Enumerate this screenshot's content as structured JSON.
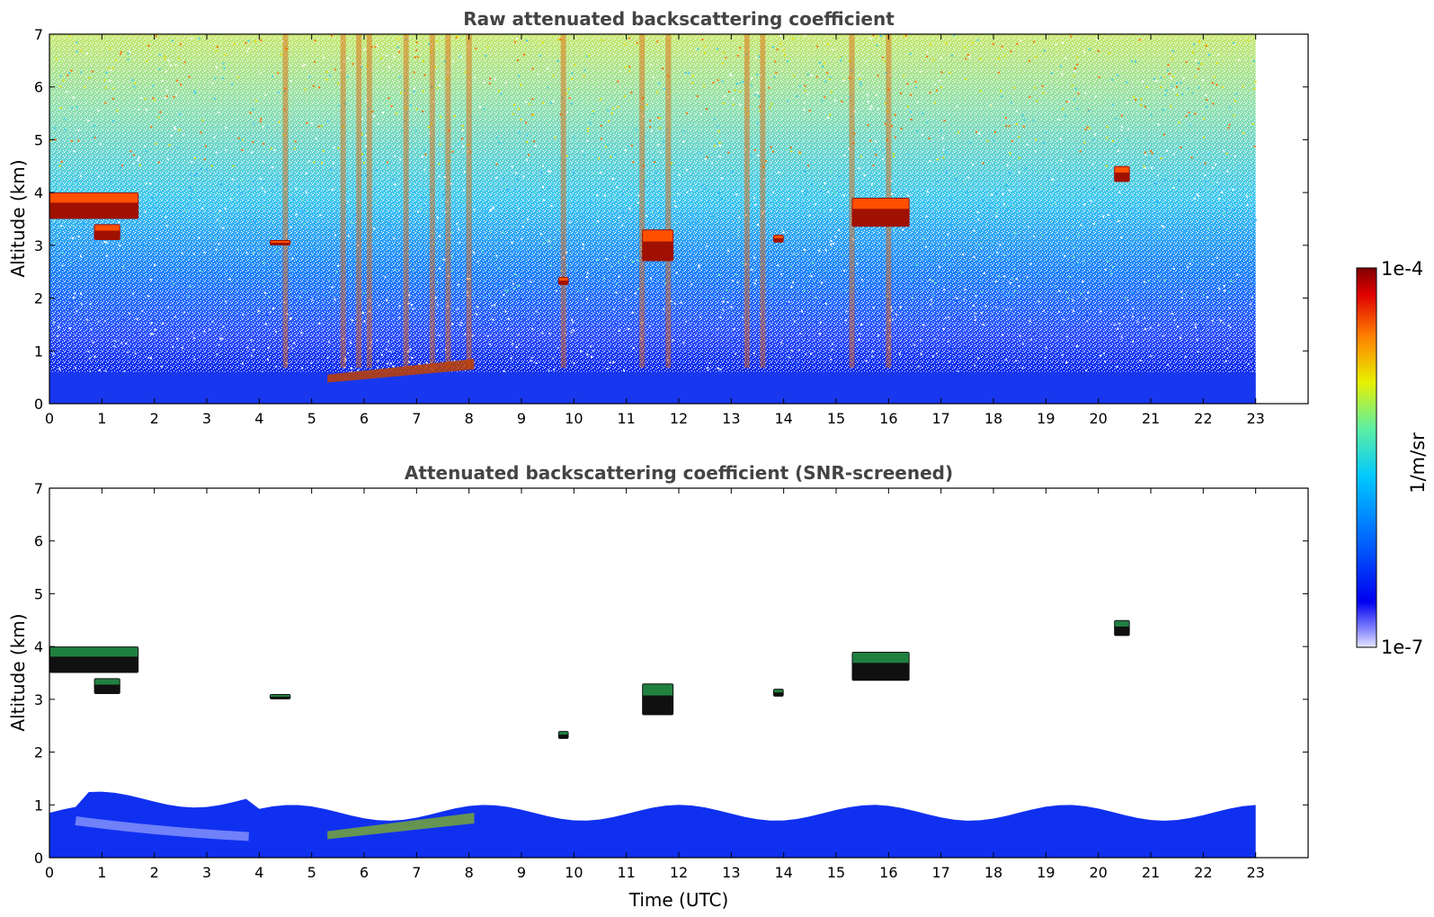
{
  "chart_data": [
    {
      "type": "heatmap",
      "title": "Raw attenuated backscattering coefficient",
      "xlabel": "",
      "ylabel": "Altitude (km)",
      "xlim": [
        0,
        24
      ],
      "ylim": [
        0,
        7
      ],
      "x_ticks": [
        "0",
        "1",
        "2",
        "3",
        "4",
        "5",
        "6",
        "7",
        "8",
        "9",
        "10",
        "11",
        "12",
        "13",
        "14",
        "15",
        "16",
        "17",
        "18",
        "19",
        "20",
        "21",
        "22",
        "23"
      ],
      "y_ticks": [
        "0",
        "1",
        "2",
        "3",
        "4",
        "5",
        "6",
        "7"
      ],
      "data_extent_hours": [
        0,
        23
      ],
      "description_layers": [
        {
          "feature": "boundary layer",
          "altitude_km": [
            0,
            0.6
          ],
          "level": "low"
        },
        {
          "feature": "elevated aerosol layer",
          "time_h": [
            5.3,
            8.1
          ],
          "altitude_km": [
            0.35,
            0.8
          ],
          "level": "high"
        }
      ],
      "clouds": [
        {
          "time_h": [
            0.0,
            1.7
          ],
          "altitude_km": [
            3.5,
            4.0
          ]
        },
        {
          "time_h": [
            0.85,
            1.35
          ],
          "altitude_km": [
            3.1,
            3.4
          ]
        },
        {
          "time_h": [
            4.2,
            4.6
          ],
          "altitude_km": [
            3.0,
            3.1
          ]
        },
        {
          "time_h": [
            9.7,
            9.9
          ],
          "altitude_km": [
            2.25,
            2.4
          ]
        },
        {
          "time_h": [
            11.3,
            11.9
          ],
          "altitude_km": [
            2.7,
            3.3
          ]
        },
        {
          "time_h": [
            13.8,
            14.0
          ],
          "altitude_km": [
            3.05,
            3.2
          ]
        },
        {
          "time_h": [
            15.3,
            16.4
          ],
          "altitude_km": [
            3.35,
            3.9
          ]
        },
        {
          "time_h": [
            20.3,
            20.6
          ],
          "altitude_km": [
            4.2,
            4.5
          ]
        }
      ],
      "precip_streaks_h": [
        4.5,
        5.6,
        5.9,
        6.1,
        6.8,
        7.3,
        7.6,
        8.0,
        9.8,
        11.3,
        11.8,
        13.3,
        13.6,
        15.3,
        16.0
      ]
    },
    {
      "type": "heatmap",
      "title": "Attenuated backscattering coefficient (SNR-screened)",
      "xlabel": "Time (UTC)",
      "ylabel": "Altitude (km)",
      "xlim": [
        0,
        24
      ],
      "ylim": [
        0,
        7
      ],
      "x_ticks": [
        "0",
        "1",
        "2",
        "3",
        "4",
        "5",
        "6",
        "7",
        "8",
        "9",
        "10",
        "11",
        "12",
        "13",
        "14",
        "15",
        "16",
        "17",
        "18",
        "19",
        "20",
        "21",
        "22",
        "23"
      ],
      "y_ticks": [
        "0",
        "1",
        "2",
        "3",
        "4",
        "5",
        "6",
        "7"
      ],
      "data_extent_hours": [
        0,
        23
      ]
    }
  ],
  "colorbar": {
    "label": "1/m/sr",
    "max_label": "1e-4",
    "min_label": "1e-7",
    "scale": "log",
    "colormap": [
      "#e6e6ff",
      "#0000f0",
      "#0070ff",
      "#00c8ff",
      "#60f0a0",
      "#e8f000",
      "#ff8000",
      "#e00000",
      "#800000"
    ]
  }
}
